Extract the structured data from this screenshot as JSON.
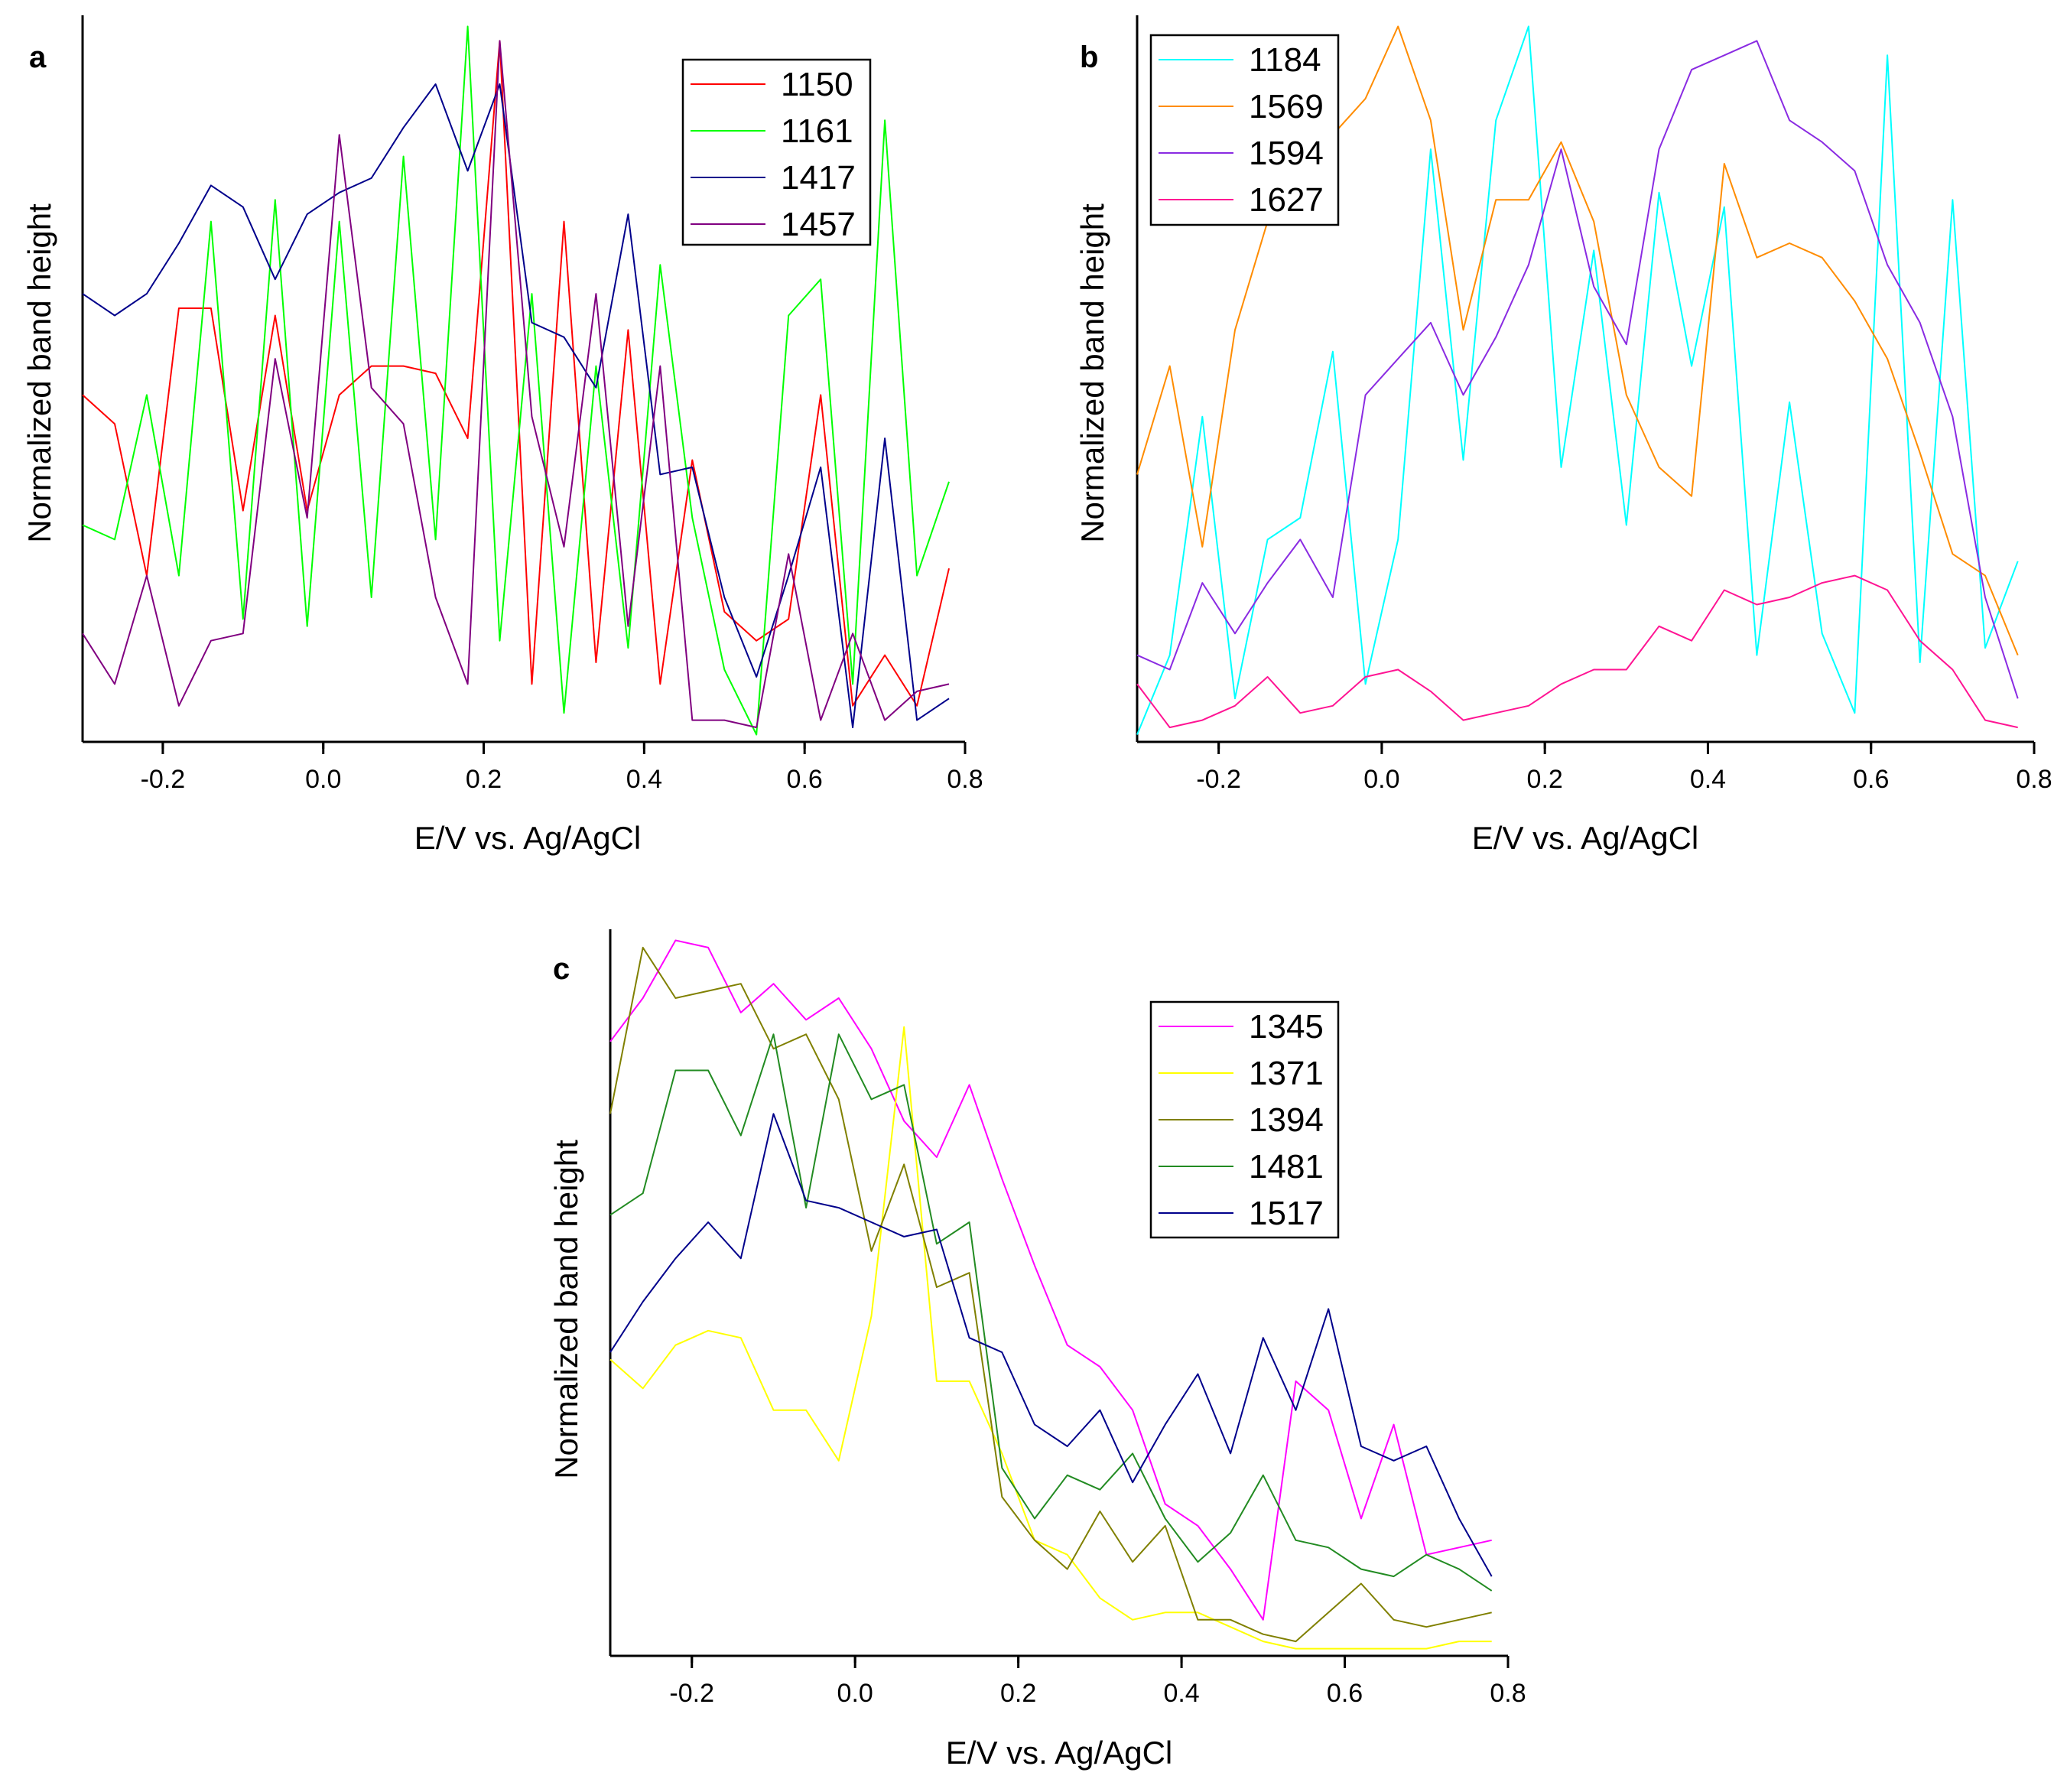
{
  "chart_data": [
    {
      "type": "line",
      "panel_label": "a",
      "xlabel": "E/V vs. Ag/AgCl",
      "ylabel": "Normalized band height",
      "xlim": [
        -0.3,
        0.8
      ],
      "ylim": [
        0,
        1
      ],
      "xticks": [
        -0.2,
        0.0,
        0.2,
        0.4,
        0.6,
        0.8
      ],
      "xtick_labels": [
        "-0.2",
        "0.0",
        "0.2",
        "0.4",
        "0.6",
        "0.8"
      ],
      "legend_position": "top-right",
      "series": [
        {
          "name": "1150",
          "color": "#ff0000",
          "x": [
            -0.3,
            -0.26,
            -0.22,
            -0.18,
            -0.14,
            -0.1,
            -0.06,
            -0.02,
            0.02,
            0.06,
            0.1,
            0.14,
            0.18,
            0.22,
            0.26,
            0.3,
            0.34,
            0.38,
            0.42,
            0.46,
            0.5,
            0.54,
            0.58,
            0.62,
            0.66,
            0.7,
            0.74,
            0.78
          ],
          "values": [
            0.48,
            0.44,
            0.23,
            0.6,
            0.6,
            0.32,
            0.59,
            0.32,
            0.48,
            0.52,
            0.52,
            0.51,
            0.42,
            0.97,
            0.08,
            0.72,
            0.11,
            0.57,
            0.08,
            0.39,
            0.18,
            0.14,
            0.17,
            0.48,
            0.05,
            0.12,
            0.05,
            0.24
          ]
        },
        {
          "name": "1161",
          "color": "#00ff00",
          "x": [
            -0.3,
            -0.26,
            -0.22,
            -0.18,
            -0.14,
            -0.1,
            -0.06,
            -0.02,
            0.02,
            0.06,
            0.1,
            0.14,
            0.18,
            0.22,
            0.26,
            0.3,
            0.34,
            0.38,
            0.42,
            0.46,
            0.5,
            0.54,
            0.58,
            0.62,
            0.66,
            0.7,
            0.74,
            0.78
          ],
          "values": [
            0.3,
            0.28,
            0.48,
            0.23,
            0.72,
            0.17,
            0.75,
            0.16,
            0.72,
            0.2,
            0.81,
            0.28,
            0.99,
            0.14,
            0.62,
            0.04,
            0.52,
            0.13,
            0.66,
            0.31,
            0.1,
            0.01,
            0.59,
            0.64,
            0.08,
            0.86,
            0.23,
            0.36
          ]
        },
        {
          "name": "1417",
          "color": "#00008b",
          "x": [
            -0.3,
            -0.26,
            -0.22,
            -0.18,
            -0.14,
            -0.1,
            -0.06,
            -0.02,
            0.02,
            0.06,
            0.1,
            0.14,
            0.18,
            0.22,
            0.26,
            0.3,
            0.34,
            0.38,
            0.42,
            0.46,
            0.5,
            0.54,
            0.58,
            0.62,
            0.66,
            0.7,
            0.74,
            0.78
          ],
          "values": [
            0.62,
            0.59,
            0.62,
            0.69,
            0.77,
            0.74,
            0.64,
            0.73,
            0.76,
            0.78,
            0.85,
            0.91,
            0.79,
            0.91,
            0.58,
            0.56,
            0.49,
            0.73,
            0.37,
            0.38,
            0.2,
            0.09,
            0.23,
            0.38,
            0.02,
            0.42,
            0.03,
            0.06
          ]
        },
        {
          "name": "1457",
          "color": "#800080",
          "x": [
            -0.3,
            -0.26,
            -0.22,
            -0.18,
            -0.14,
            -0.1,
            -0.06,
            -0.02,
            0.02,
            0.06,
            0.1,
            0.14,
            0.18,
            0.22,
            0.26,
            0.3,
            0.34,
            0.38,
            0.42,
            0.46,
            0.5,
            0.54,
            0.58,
            0.62,
            0.66,
            0.7,
            0.74,
            0.78
          ],
          "values": [
            0.15,
            0.08,
            0.23,
            0.05,
            0.14,
            0.15,
            0.53,
            0.31,
            0.84,
            0.49,
            0.44,
            0.2,
            0.08,
            0.97,
            0.45,
            0.27,
            0.62,
            0.16,
            0.52,
            0.03,
            0.03,
            0.02,
            0.26,
            0.03,
            0.15,
            0.03,
            0.07,
            0.08
          ]
        }
      ]
    },
    {
      "type": "line",
      "panel_label": "b",
      "xlabel": "E/V vs. Ag/AgCl",
      "ylabel": "Normalized band height",
      "xlim": [
        -0.3,
        0.8
      ],
      "ylim": [
        0,
        1
      ],
      "xticks": [
        -0.2,
        0.0,
        0.2,
        0.4,
        0.6,
        0.8
      ],
      "xtick_labels": [
        "-0.2",
        "0.0",
        "0.2",
        "0.4",
        "0.6",
        "0.8"
      ],
      "legend_position": "top-left",
      "series": [
        {
          "name": "1184",
          "color": "#00ffff",
          "x": [
            -0.3,
            -0.26,
            -0.22,
            -0.18,
            -0.14,
            -0.1,
            -0.06,
            -0.02,
            0.02,
            0.06,
            0.1,
            0.14,
            0.18,
            0.22,
            0.26,
            0.3,
            0.34,
            0.38,
            0.42,
            0.46,
            0.5,
            0.54,
            0.58,
            0.62,
            0.66,
            0.7,
            0.74,
            0.78
          ],
          "values": [
            0.01,
            0.12,
            0.45,
            0.06,
            0.28,
            0.31,
            0.54,
            0.08,
            0.28,
            0.82,
            0.39,
            0.86,
            0.99,
            0.38,
            0.68,
            0.3,
            0.76,
            0.52,
            0.74,
            0.12,
            0.47,
            0.15,
            0.04,
            0.95,
            0.11,
            0.75,
            0.13,
            0.25
          ]
        },
        {
          "name": "1569",
          "color": "#ff8c00",
          "x": [
            -0.3,
            -0.26,
            -0.22,
            -0.18,
            -0.14,
            -0.1,
            -0.06,
            -0.02,
            0.02,
            0.06,
            0.1,
            0.14,
            0.18,
            0.22,
            0.26,
            0.3,
            0.34,
            0.38,
            0.42,
            0.46,
            0.5,
            0.54,
            0.58,
            0.62,
            0.66,
            0.7,
            0.74,
            0.78
          ],
          "values": [
            0.37,
            0.52,
            0.27,
            0.57,
            0.72,
            0.78,
            0.84,
            0.89,
            0.99,
            0.86,
            0.57,
            0.75,
            0.75,
            0.83,
            0.72,
            0.48,
            0.38,
            0.34,
            0.8,
            0.67,
            0.69,
            0.67,
            0.61,
            0.53,
            0.4,
            0.26,
            0.23,
            0.12
          ]
        },
        {
          "name": "1594",
          "color": "#8a2be2",
          "x": [
            -0.3,
            -0.26,
            -0.22,
            -0.18,
            -0.14,
            -0.1,
            -0.06,
            -0.02,
            0.02,
            0.06,
            0.1,
            0.14,
            0.18,
            0.22,
            0.26,
            0.3,
            0.34,
            0.38,
            0.42,
            0.46,
            0.5,
            0.54,
            0.58,
            0.62,
            0.66,
            0.7,
            0.74,
            0.78
          ],
          "values": [
            0.12,
            0.1,
            0.22,
            0.15,
            0.22,
            0.28,
            0.2,
            0.48,
            0.53,
            0.58,
            0.48,
            0.56,
            0.66,
            0.82,
            0.63,
            0.55,
            0.82,
            0.93,
            0.95,
            0.97,
            0.86,
            0.83,
            0.79,
            0.66,
            0.58,
            0.45,
            0.2,
            0.06
          ]
        },
        {
          "name": "1627",
          "color": "#ff1493",
          "x": [
            -0.3,
            -0.26,
            -0.22,
            -0.18,
            -0.14,
            -0.1,
            -0.06,
            -0.02,
            0.02,
            0.06,
            0.1,
            0.14,
            0.18,
            0.22,
            0.26,
            0.3,
            0.34,
            0.38,
            0.42,
            0.46,
            0.5,
            0.54,
            0.58,
            0.62,
            0.66,
            0.7,
            0.74,
            0.78
          ],
          "values": [
            0.08,
            0.02,
            0.03,
            0.05,
            0.09,
            0.04,
            0.05,
            0.09,
            0.1,
            0.07,
            0.03,
            0.04,
            0.05,
            0.08,
            0.1,
            0.1,
            0.16,
            0.14,
            0.21,
            0.19,
            0.2,
            0.22,
            0.23,
            0.21,
            0.14,
            0.1,
            0.03,
            0.02
          ]
        }
      ]
    },
    {
      "type": "line",
      "panel_label": "c",
      "xlabel": "E/V vs. Ag/AgCl",
      "ylabel": "Normalized band height",
      "xlim": [
        -0.3,
        0.8
      ],
      "ylim": [
        0,
        1
      ],
      "xticks": [
        -0.2,
        0.0,
        0.2,
        0.4,
        0.6,
        0.8
      ],
      "xtick_labels": [
        "-0.2",
        "0.0",
        "0.2",
        "0.4",
        "0.6",
        "0.8"
      ],
      "legend_position": "top-right",
      "series": [
        {
          "name": "1345",
          "color": "#ff00ff",
          "x": [
            -0.3,
            -0.26,
            -0.22,
            -0.18,
            -0.14,
            -0.1,
            -0.06,
            -0.02,
            0.02,
            0.06,
            0.1,
            0.14,
            0.18,
            0.22,
            0.26,
            0.3,
            0.34,
            0.38,
            0.42,
            0.46,
            0.5,
            0.54,
            0.58,
            0.62,
            0.66,
            0.7,
            0.74,
            0.78
          ],
          "values": [
            0.85,
            0.91,
            0.99,
            0.98,
            0.89,
            0.93,
            0.88,
            0.91,
            0.84,
            0.74,
            0.69,
            0.79,
            0.66,
            0.54,
            0.43,
            0.4,
            0.34,
            0.21,
            0.18,
            0.12,
            0.05,
            0.38,
            0.34,
            0.19,
            0.32,
            0.14,
            0.15,
            0.16
          ]
        },
        {
          "name": "1371",
          "color": "#ffff00",
          "x": [
            -0.3,
            -0.26,
            -0.22,
            -0.18,
            -0.14,
            -0.1,
            -0.06,
            -0.02,
            0.02,
            0.06,
            0.1,
            0.14,
            0.18,
            0.22,
            0.26,
            0.3,
            0.34,
            0.38,
            0.42,
            0.46,
            0.5,
            0.54,
            0.58,
            0.62,
            0.66,
            0.7,
            0.74,
            0.78
          ],
          "values": [
            0.41,
            0.37,
            0.43,
            0.45,
            0.44,
            0.34,
            0.34,
            0.27,
            0.47,
            0.87,
            0.38,
            0.38,
            0.28,
            0.16,
            0.14,
            0.08,
            0.05,
            0.06,
            0.06,
            0.04,
            0.02,
            0.01,
            0.01,
            0.01,
            0.01,
            0.01,
            0.02,
            0.02
          ]
        },
        {
          "name": "1394",
          "color": "#808000",
          "x": [
            -0.3,
            -0.26,
            -0.22,
            -0.18,
            -0.14,
            -0.1,
            -0.06,
            -0.02,
            0.02,
            0.06,
            0.1,
            0.14,
            0.18,
            0.22,
            0.26,
            0.3,
            0.34,
            0.38,
            0.42,
            0.46,
            0.5,
            0.54,
            0.58,
            0.62,
            0.66,
            0.7,
            0.74,
            0.78
          ],
          "values": [
            0.75,
            0.98,
            0.91,
            0.92,
            0.93,
            0.84,
            0.86,
            0.77,
            0.56,
            0.68,
            0.51,
            0.53,
            0.22,
            0.16,
            0.12,
            0.2,
            0.13,
            0.18,
            0.05,
            0.05,
            0.03,
            0.02,
            0.06,
            0.1,
            0.05,
            0.04,
            0.05,
            0.06
          ]
        },
        {
          "name": "1481",
          "color": "#228b22",
          "x": [
            -0.3,
            -0.26,
            -0.22,
            -0.18,
            -0.14,
            -0.1,
            -0.06,
            -0.02,
            0.02,
            0.06,
            0.1,
            0.14,
            0.18,
            0.22,
            0.26,
            0.3,
            0.34,
            0.38,
            0.42,
            0.46,
            0.5,
            0.54,
            0.58,
            0.62,
            0.66,
            0.7,
            0.74,
            0.78
          ],
          "values": [
            0.61,
            0.64,
            0.81,
            0.81,
            0.72,
            0.86,
            0.62,
            0.86,
            0.77,
            0.79,
            0.57,
            0.6,
            0.26,
            0.19,
            0.25,
            0.23,
            0.28,
            0.19,
            0.13,
            0.17,
            0.25,
            0.16,
            0.15,
            0.12,
            0.11,
            0.14,
            0.12,
            0.09
          ]
        },
        {
          "name": "1517",
          "color": "#00008b",
          "x": [
            -0.3,
            -0.26,
            -0.22,
            -0.18,
            -0.14,
            -0.1,
            -0.06,
            -0.02,
            0.02,
            0.06,
            0.1,
            0.14,
            0.18,
            0.22,
            0.26,
            0.3,
            0.34,
            0.38,
            0.42,
            0.46,
            0.5,
            0.54,
            0.58,
            0.62,
            0.66,
            0.7,
            0.74,
            0.78
          ],
          "values": [
            0.42,
            0.49,
            0.55,
            0.6,
            0.55,
            0.75,
            0.63,
            0.62,
            0.6,
            0.58,
            0.59,
            0.44,
            0.42,
            0.32,
            0.29,
            0.34,
            0.24,
            0.32,
            0.39,
            0.28,
            0.44,
            0.34,
            0.48,
            0.29,
            0.27,
            0.29,
            0.19,
            0.11
          ]
        }
      ]
    }
  ]
}
